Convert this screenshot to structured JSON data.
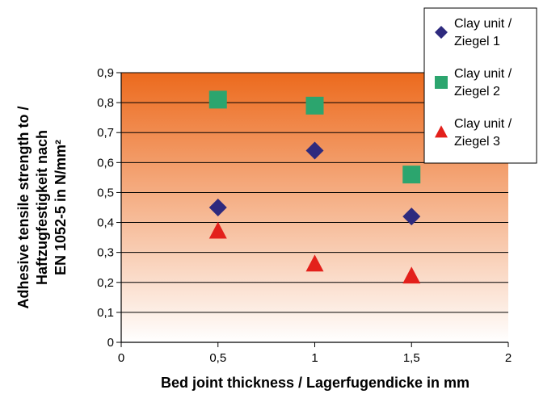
{
  "chart_data": {
    "type": "scatter",
    "xlabel": "Bed joint thickness / Lagerfugendicke in mm",
    "ylabel": [
      "Adhesive tensile strength to /",
      "Haftzugfestigkeit nach",
      "EN 1052-5 in N/mm²"
    ],
    "xlim": [
      0,
      2
    ],
    "ylim": [
      0,
      0.9
    ],
    "xticks": [
      {
        "value": 0,
        "label": "0"
      },
      {
        "value": 0.5,
        "label": "0,5"
      },
      {
        "value": 1,
        "label": "1"
      },
      {
        "value": 1.5,
        "label": "1,5"
      },
      {
        "value": 2,
        "label": "2"
      }
    ],
    "yticks": [
      {
        "value": 0,
        "label": "0"
      },
      {
        "value": 0.1,
        "label": "0,1"
      },
      {
        "value": 0.2,
        "label": "0,2"
      },
      {
        "value": 0.3,
        "label": "0,3"
      },
      {
        "value": 0.4,
        "label": "0,4"
      },
      {
        "value": 0.5,
        "label": "0,5"
      },
      {
        "value": 0.6,
        "label": "0,6"
      },
      {
        "value": 0.7,
        "label": "0,7"
      },
      {
        "value": 0.8,
        "label": "0,8"
      },
      {
        "value": 0.9,
        "label": "0,9"
      }
    ],
    "grid": "horizontal",
    "legend_position": "top-right",
    "background_gradient": [
      "#ec6a1d",
      "#ffffff"
    ],
    "series": [
      {
        "name": [
          "Clay unit /",
          "Ziegel 1"
        ],
        "marker": "diamond",
        "color": "#2e2a7e",
        "points": [
          {
            "x": 0.5,
            "y": 0.45
          },
          {
            "x": 1,
            "y": 0.64
          },
          {
            "x": 1.5,
            "y": 0.42
          }
        ]
      },
      {
        "name": [
          "Clay unit /",
          "Ziegel 2"
        ],
        "marker": "square",
        "color": "#2ca56e",
        "points": [
          {
            "x": 0.5,
            "y": 0.81
          },
          {
            "x": 1,
            "y": 0.79
          },
          {
            "x": 1.5,
            "y": 0.56
          }
        ]
      },
      {
        "name": [
          "Clay unit /",
          "Ziegel 3"
        ],
        "marker": "triangle",
        "color": "#e3201b",
        "points": [
          {
            "x": 0.5,
            "y": 0.37
          },
          {
            "x": 1,
            "y": 0.26
          },
          {
            "x": 1.5,
            "y": 0.22
          }
        ]
      }
    ]
  }
}
